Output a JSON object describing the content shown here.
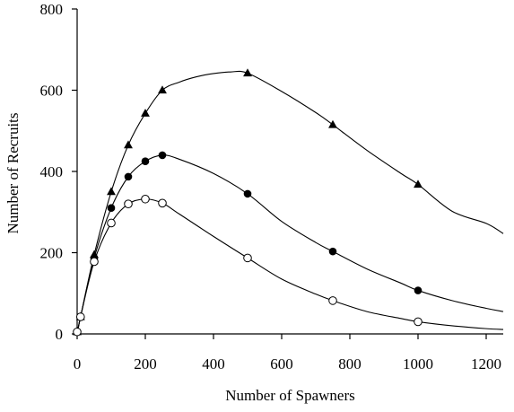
{
  "chart_data": {
    "type": "scatter",
    "title": "",
    "xlabel": "Number of Spawners",
    "ylabel": "Number of Recruits",
    "xlim": [
      0,
      1250
    ],
    "ylim": [
      0,
      800
    ],
    "x_ticks": [
      0,
      200,
      400,
      600,
      800,
      1000,
      1200
    ],
    "y_ticks": [
      0,
      200,
      400,
      600,
      800
    ],
    "grid": false,
    "legend": "none",
    "series": [
      {
        "marker": "filled-triangle",
        "color": "#000000",
        "points": [
          [
            0,
            5
          ],
          [
            10,
            42
          ],
          [
            50,
            195
          ],
          [
            100,
            350
          ],
          [
            150,
            465
          ],
          [
            200,
            543
          ],
          [
            250,
            600
          ],
          [
            500,
            642
          ],
          [
            750,
            515
          ],
          [
            1000,
            368
          ]
        ],
        "curve": [
          [
            0,
            0
          ],
          [
            10,
            42
          ],
          [
            50,
            195
          ],
          [
            100,
            350
          ],
          [
            150,
            465
          ],
          [
            200,
            543
          ],
          [
            250,
            600
          ],
          [
            300,
            620
          ],
          [
            350,
            633
          ],
          [
            400,
            641
          ],
          [
            450,
            645
          ],
          [
            500,
            642
          ],
          [
            600,
            597
          ],
          [
            700,
            545
          ],
          [
            750,
            515
          ],
          [
            850,
            452
          ],
          [
            950,
            395
          ],
          [
            1000,
            368
          ],
          [
            1100,
            302
          ],
          [
            1200,
            272
          ],
          [
            1250,
            247
          ]
        ]
      },
      {
        "marker": "filled-circle",
        "color": "#000000",
        "points": [
          [
            0,
            5
          ],
          [
            10,
            42
          ],
          [
            50,
            187
          ],
          [
            100,
            310
          ],
          [
            150,
            387
          ],
          [
            200,
            425
          ],
          [
            250,
            440
          ],
          [
            500,
            345
          ],
          [
            750,
            203
          ],
          [
            1000,
            107
          ]
        ],
        "curve": [
          [
            0,
            0
          ],
          [
            10,
            42
          ],
          [
            50,
            187
          ],
          [
            100,
            310
          ],
          [
            150,
            387
          ],
          [
            200,
            425
          ],
          [
            250,
            440
          ],
          [
            300,
            430
          ],
          [
            400,
            395
          ],
          [
            500,
            345
          ],
          [
            600,
            277
          ],
          [
            700,
            225
          ],
          [
            750,
            203
          ],
          [
            850,
            160
          ],
          [
            950,
            125
          ],
          [
            1000,
            107
          ],
          [
            1100,
            82
          ],
          [
            1200,
            63
          ],
          [
            1250,
            55
          ]
        ]
      },
      {
        "marker": "open-circle",
        "color": "#000000",
        "points": [
          [
            0,
            5
          ],
          [
            10,
            42
          ],
          [
            50,
            178
          ],
          [
            100,
            273
          ],
          [
            150,
            320
          ],
          [
            200,
            332
          ],
          [
            250,
            322
          ],
          [
            500,
            187
          ],
          [
            750,
            82
          ],
          [
            1000,
            30
          ]
        ],
        "curve": [
          [
            0,
            0
          ],
          [
            10,
            42
          ],
          [
            50,
            178
          ],
          [
            100,
            273
          ],
          [
            150,
            320
          ],
          [
            200,
            332
          ],
          [
            250,
            322
          ],
          [
            300,
            295
          ],
          [
            400,
            240
          ],
          [
            500,
            187
          ],
          [
            600,
            135
          ],
          [
            700,
            98
          ],
          [
            750,
            82
          ],
          [
            850,
            55
          ],
          [
            950,
            38
          ],
          [
            1000,
            30
          ],
          [
            1100,
            20
          ],
          [
            1200,
            13
          ],
          [
            1250,
            11
          ]
        ]
      }
    ]
  }
}
